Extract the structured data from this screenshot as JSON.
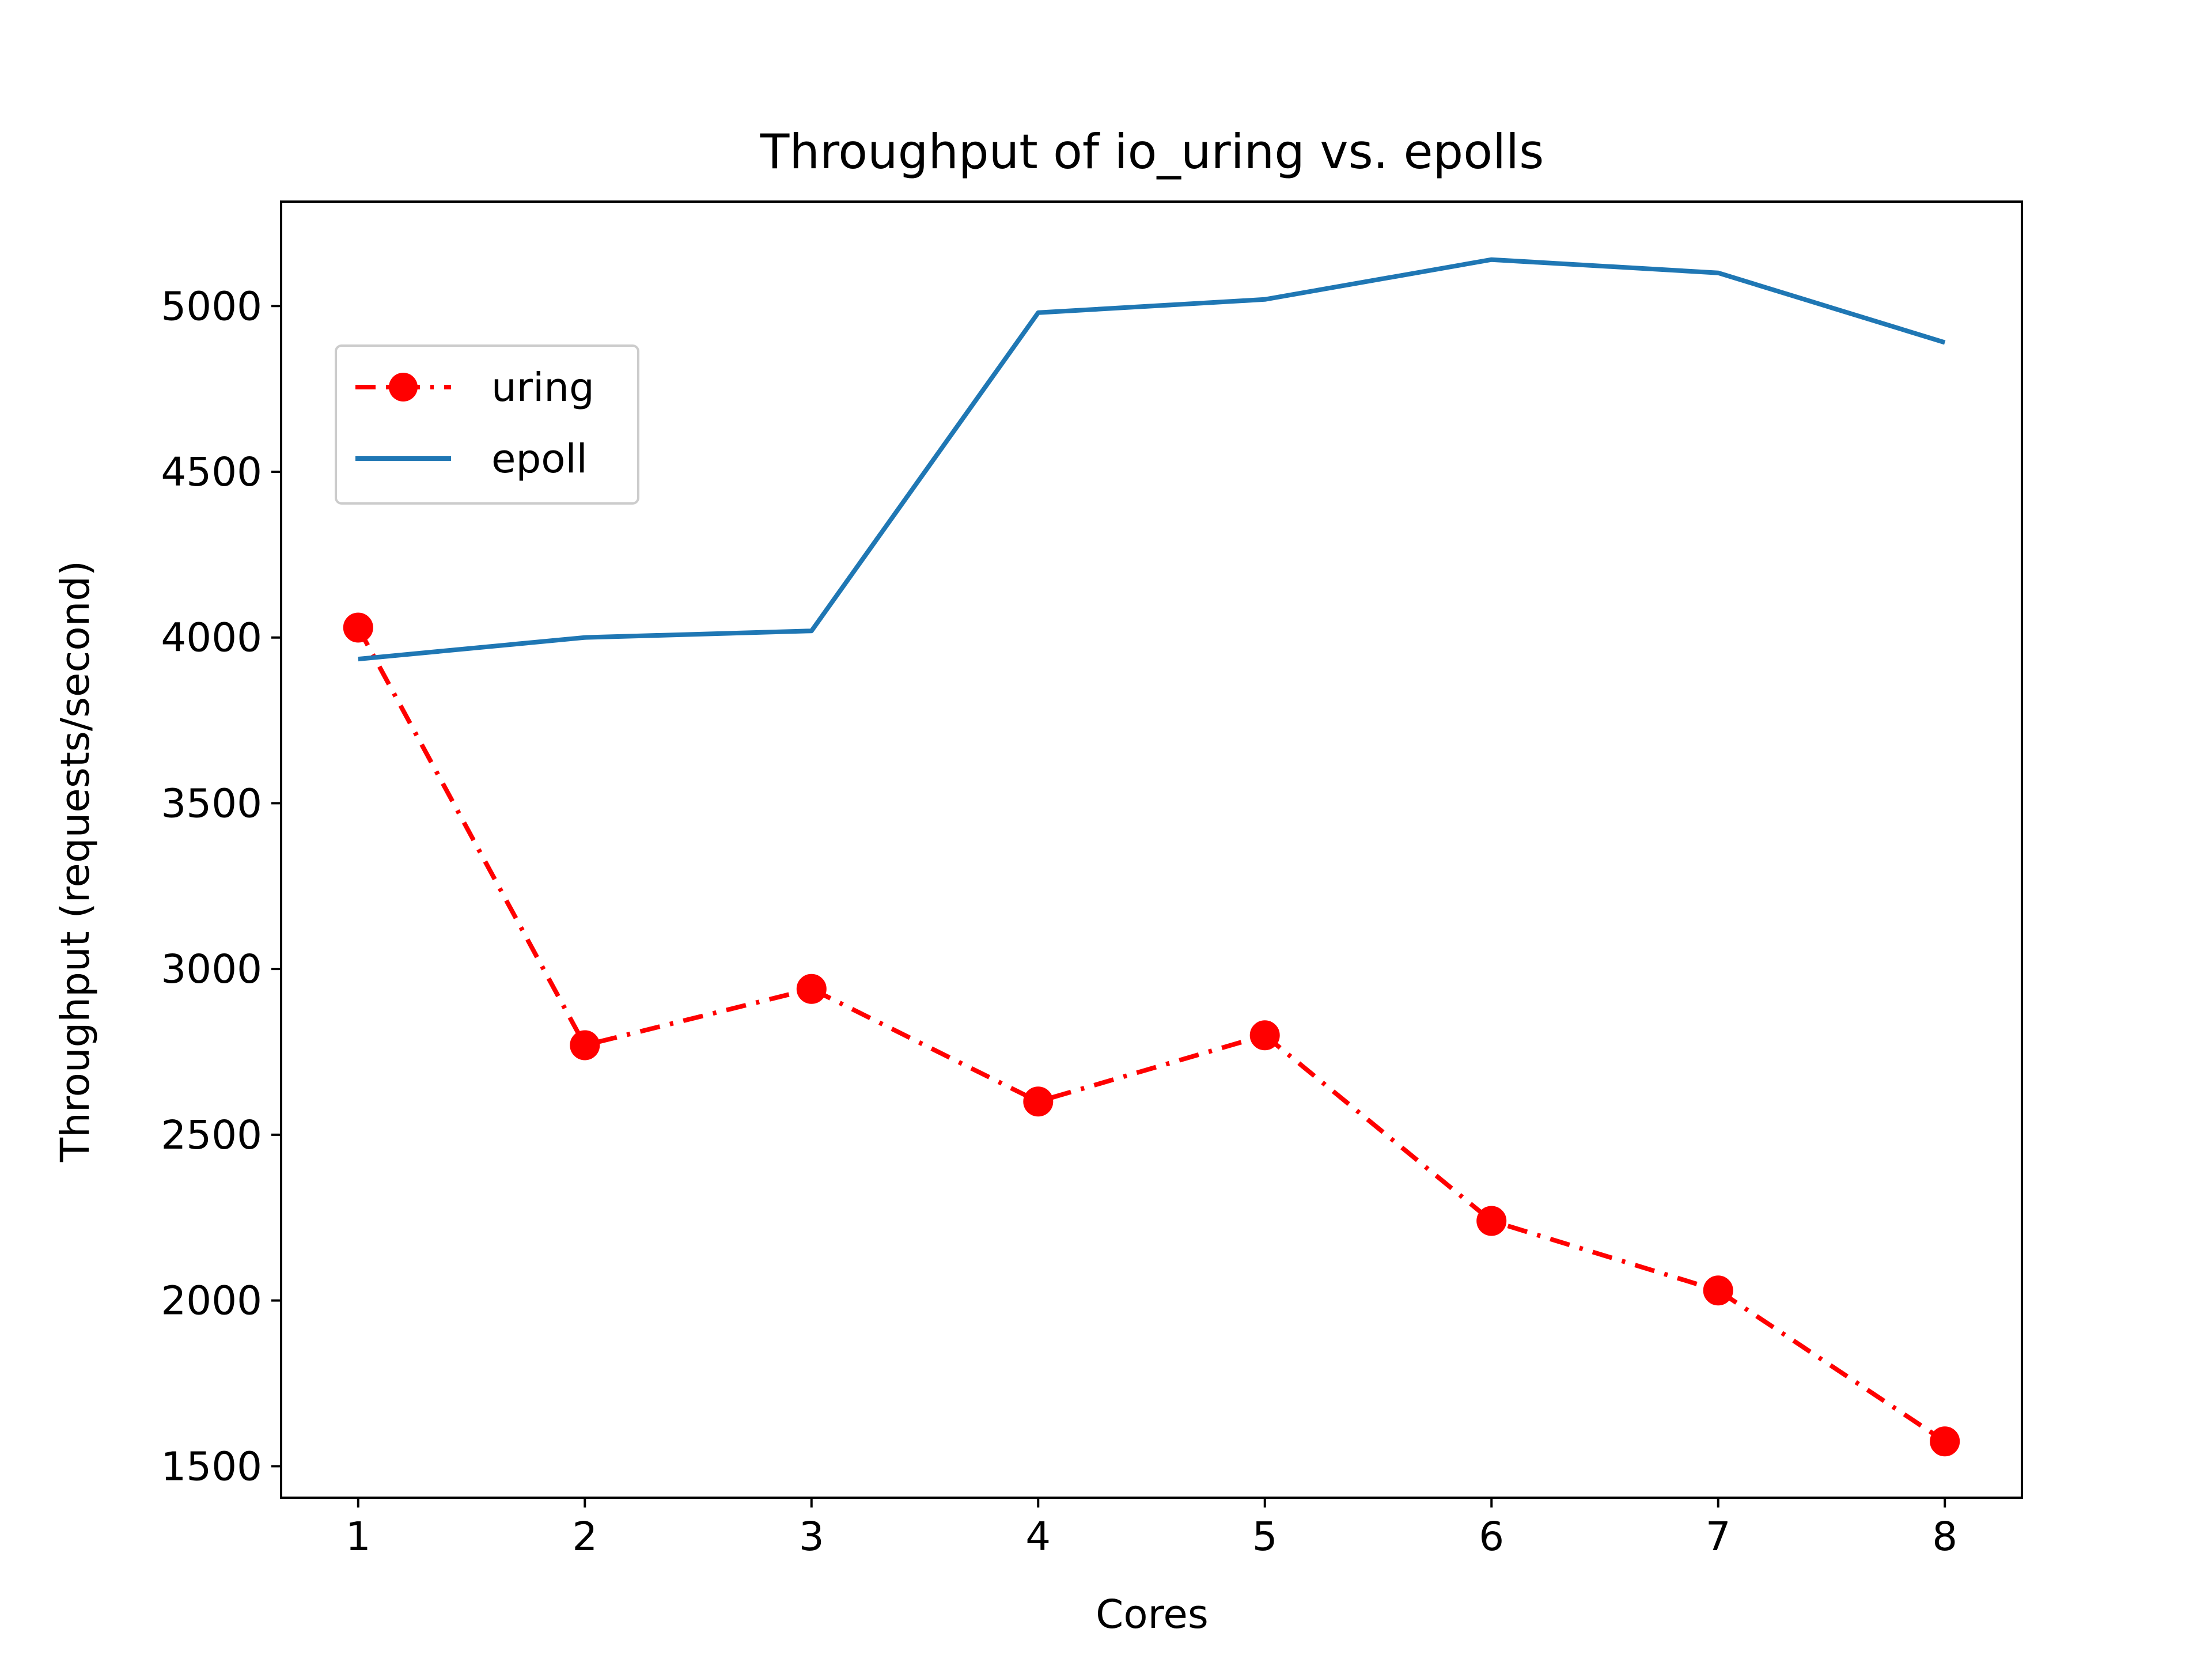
{
  "chart_data": {
    "type": "line",
    "title": "Throughput of io_uring vs. epolls",
    "xlabel": "Cores",
    "ylabel": "Throughput (requests/second)",
    "x": [
      1,
      2,
      3,
      4,
      5,
      6,
      7,
      8
    ],
    "xticks": [
      "1",
      "2",
      "3",
      "4",
      "5",
      "6",
      "7",
      "8"
    ],
    "yticks": [
      "1500",
      "2000",
      "2500",
      "3000",
      "3500",
      "4000",
      "4500",
      "5000"
    ],
    "xlim": [
      0.66,
      8.34
    ],
    "ylim": [
      1405,
      5315
    ],
    "grid": false,
    "legend_position": "upper-left",
    "series": [
      {
        "name": "uring",
        "color": "#ff0000",
        "line_style": "dash-dot",
        "marker": "circle",
        "values": [
          4030,
          2770,
          2940,
          2600,
          2800,
          2240,
          2030,
          1575
        ]
      },
      {
        "name": "epoll",
        "color": "#1f77b4",
        "line_style": "solid",
        "marker": "none",
        "values": [
          3935,
          4000,
          4020,
          4980,
          5020,
          5140,
          5100,
          4890
        ]
      }
    ]
  }
}
